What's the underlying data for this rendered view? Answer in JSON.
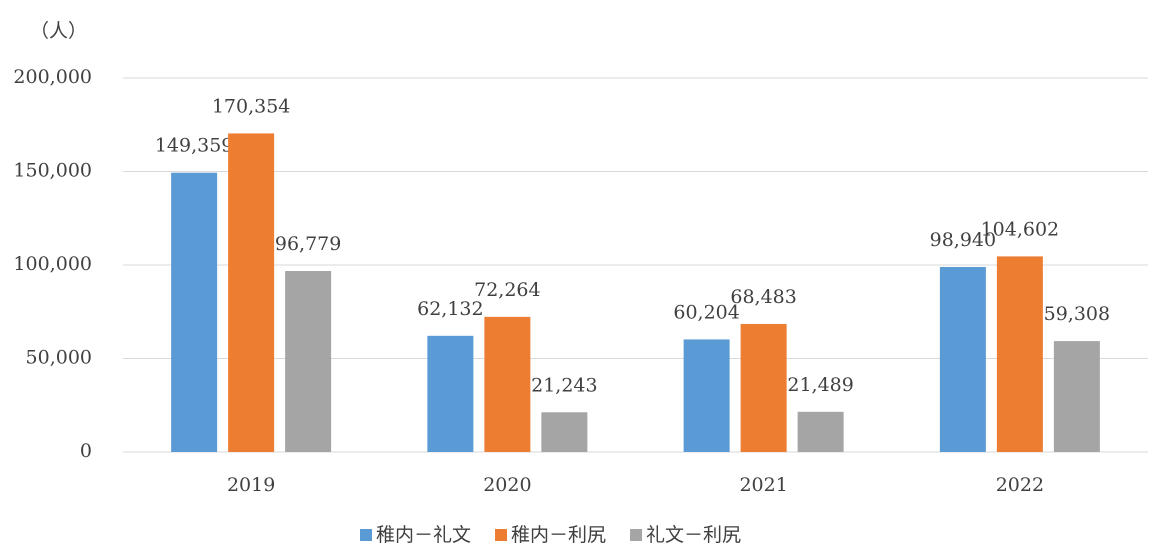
{
  "chart_data": {
    "type": "bar",
    "unit_label": "（人）",
    "categories": [
      "2019",
      "2020",
      "2021",
      "2022"
    ],
    "series": [
      {
        "name": "稚内－礼文",
        "color": "#5b9bd5",
        "values": [
          149359,
          62132,
          60204,
          98940
        ],
        "value_labels": [
          "149,359",
          "62,132",
          "60,204",
          "98,940"
        ]
      },
      {
        "name": "稚内－利尻",
        "color": "#ed7d31",
        "values": [
          170354,
          72264,
          68483,
          104602
        ],
        "value_labels": [
          "170,354",
          "72,264",
          "68,483",
          "104,602"
        ]
      },
      {
        "name": "礼文－利尻",
        "color": "#a5a5a5",
        "values": [
          96779,
          21243,
          21489,
          59308
        ],
        "value_labels": [
          "96,779",
          "21,243",
          "21,489",
          "59,308"
        ]
      }
    ],
    "ylim": [
      0,
      200000
    ],
    "yticks": [
      0,
      {
        "value": 50000,
        "label": "50,000"
      },
      {
        "value": 100000,
        "label": "100,000"
      },
      {
        "value": 150000,
        "label": "150,000"
      },
      {
        "value": 200000,
        "label": "200,000"
      }
    ],
    "grid": true,
    "legend": "bottom"
  }
}
